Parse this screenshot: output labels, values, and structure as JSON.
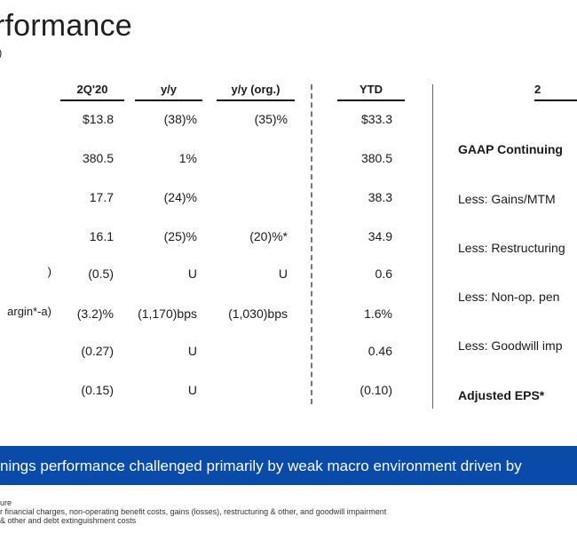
{
  "title": "rformance",
  "subtitle": ")",
  "headers": {
    "q2": "2Q'20",
    "yy": "y/y",
    "yy_org": "y/y (org.)",
    "ytd": "YTD",
    "right": "2"
  },
  "row_labels": [
    "",
    "",
    "",
    "",
    ")",
    "argin*-a)",
    "",
    ""
  ],
  "rows": [
    {
      "q2": "$13.8",
      "yy": "(38)%",
      "yy_org": "(35)%",
      "ytd": "$33.3"
    },
    {
      "q2": "380.5",
      "yy": "1%",
      "yy_org": "",
      "ytd": "380.5"
    },
    {
      "q2": "17.7",
      "yy": "(24)%",
      "yy_org": "",
      "ytd": "38.3"
    },
    {
      "q2": "16.1",
      "yy": "(25)%",
      "yy_org": "(20)%*",
      "ytd": "34.9"
    },
    {
      "q2": "(0.5)",
      "yy": "U",
      "yy_org": "U",
      "ytd": "0.6"
    },
    {
      "q2": "(3.2)%",
      "yy": "(1,170)bps",
      "yy_org": "(1,030)bps",
      "ytd": "1.6%"
    },
    {
      "q2": "(0.27)",
      "yy": "U",
      "yy_org": "",
      "ytd": "0.46"
    },
    {
      "q2": "(0.15)",
      "yy": "U",
      "yy_org": "",
      "ytd": "(0.10)"
    }
  ],
  "right_panel": {
    "items": [
      "GAAP Continuing",
      "Less: Gains/MTM",
      "Less: Restructuring",
      "Less: Non-op. pen",
      "Less: Goodwill imp",
      "Adjusted EPS*"
    ]
  },
  "banner": "nings performance challenged primarily by weak macro environment driven by",
  "footnotes": [
    "ure",
    "r financial charges, non-operating benefit costs, gains (losses), restructuring & other, and goodwill impairment",
    "& other and debt extinguishment costs"
  ],
  "colors": {
    "banner_bg": "#0a4aa8",
    "banner_text": "#ffffff"
  }
}
